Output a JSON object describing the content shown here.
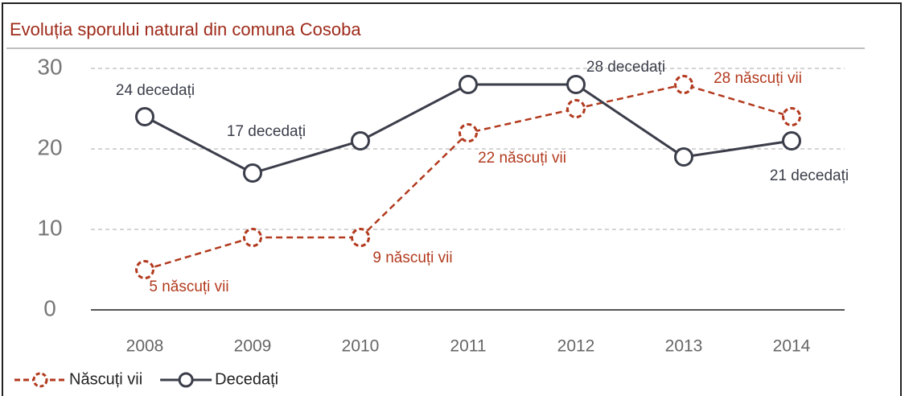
{
  "chart_data": {
    "type": "line",
    "title": "Evoluția sporului natural din comuna Cosoba",
    "categories": [
      "2008",
      "2009",
      "2010",
      "2011",
      "2012",
      "2013",
      "2014"
    ],
    "series": [
      {
        "name": "Născuți vii",
        "color": "#b23a1e",
        "dashed": true,
        "values": [
          5,
          9,
          9,
          22,
          25,
          28,
          24
        ],
        "value_labels": [
          "5 născuți vii",
          null,
          "9 născuți vii",
          "22 născuți vii",
          null,
          "28 născuți vii",
          null
        ]
      },
      {
        "name": "Decedați",
        "color": "#3b3e4a",
        "dashed": false,
        "values": [
          24,
          17,
          21,
          28,
          28,
          19,
          21
        ],
        "value_labels": [
          "24 decedați",
          "17 decedați",
          null,
          null,
          "28 decedați",
          null,
          "21 decedați"
        ]
      }
    ],
    "ylim": [
      0,
      30
    ],
    "yticks": [
      0,
      10,
      20,
      30
    ],
    "grid": true,
    "legend": "bottom-left"
  }
}
